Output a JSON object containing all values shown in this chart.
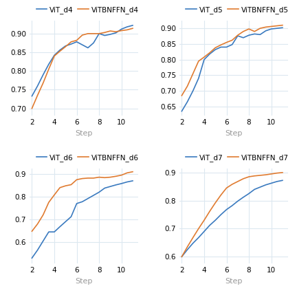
{
  "subplots": [
    {
      "legend": [
        "ViT_d4",
        "ViTBNFFN_d4"
      ],
      "blue_x": [
        2,
        2.5,
        3,
        3.5,
        4,
        4.5,
        5,
        5.5,
        6,
        6.5,
        7,
        7.5,
        8,
        8.5,
        9,
        9.5,
        10,
        10.5,
        11
      ],
      "blue_y": [
        0.733,
        0.76,
        0.79,
        0.818,
        0.842,
        0.856,
        0.867,
        0.872,
        0.878,
        0.87,
        0.862,
        0.875,
        0.9,
        0.895,
        0.898,
        0.902,
        0.912,
        0.918,
        0.922
      ],
      "orange_x": [
        2,
        2.5,
        3,
        3.5,
        4,
        4.5,
        5,
        5.5,
        6,
        6.5,
        7,
        7.5,
        8,
        8.5,
        9,
        9.5,
        10,
        10.5,
        11
      ],
      "orange_y": [
        0.7,
        0.735,
        0.768,
        0.805,
        0.84,
        0.853,
        0.865,
        0.878,
        0.882,
        0.896,
        0.9,
        0.9,
        0.9,
        0.903,
        0.907,
        0.905,
        0.908,
        0.91,
        0.914
      ],
      "yticks": [
        0.7,
        0.75,
        0.8,
        0.85,
        0.9
      ],
      "ylim": [
        0.68,
        0.935
      ]
    },
    {
      "legend": [
        "ViT_d5",
        "ViTBNFFN_d5"
      ],
      "blue_x": [
        2,
        2.5,
        3,
        3.5,
        4,
        4.5,
        5,
        5.5,
        6,
        6.5,
        7,
        7.5,
        8,
        8.5,
        9,
        9.5,
        10,
        10.5,
        11
      ],
      "blue_y": [
        0.635,
        0.665,
        0.7,
        0.74,
        0.8,
        0.818,
        0.832,
        0.84,
        0.84,
        0.848,
        0.876,
        0.87,
        0.878,
        0.882,
        0.88,
        0.892,
        0.898,
        0.9,
        0.902
      ],
      "orange_x": [
        2,
        2.5,
        3,
        3.5,
        4,
        4.5,
        5,
        5.5,
        6,
        6.5,
        7,
        7.5,
        8,
        8.5,
        9,
        9.5,
        10,
        10.5,
        11
      ],
      "orange_y": [
        0.685,
        0.715,
        0.755,
        0.795,
        0.808,
        0.822,
        0.838,
        0.847,
        0.855,
        0.862,
        0.878,
        0.89,
        0.898,
        0.89,
        0.9,
        0.904,
        0.906,
        0.908,
        0.91
      ],
      "yticks": [
        0.65,
        0.7,
        0.75,
        0.8,
        0.85,
        0.9
      ],
      "ylim": [
        0.62,
        0.925
      ]
    },
    {
      "legend": [
        "ViT_d6",
        "ViTBNFFN_d6"
      ],
      "blue_x": [
        2,
        2.5,
        3,
        3.5,
        4,
        4.5,
        5,
        5.5,
        6,
        6.5,
        7,
        7.5,
        8,
        8.5,
        9,
        9.5,
        10,
        10.5,
        11
      ],
      "blue_y": [
        0.53,
        0.565,
        0.605,
        0.645,
        0.645,
        0.668,
        0.69,
        0.712,
        0.77,
        0.778,
        0.792,
        0.806,
        0.82,
        0.838,
        0.845,
        0.852,
        0.858,
        0.865,
        0.87
      ],
      "orange_x": [
        2,
        2.5,
        3,
        3.5,
        4,
        4.5,
        5,
        5.5,
        6,
        6.5,
        7,
        7.5,
        8,
        8.5,
        9,
        9.5,
        10,
        10.5,
        11
      ],
      "orange_y": [
        0.648,
        0.68,
        0.72,
        0.775,
        0.808,
        0.84,
        0.848,
        0.853,
        0.875,
        0.88,
        0.882,
        0.882,
        0.886,
        0.884,
        0.886,
        0.89,
        0.895,
        0.905,
        0.91
      ],
      "yticks": [
        0.6,
        0.7,
        0.8,
        0.9
      ],
      "ylim": [
        0.505,
        0.925
      ]
    },
    {
      "legend": [
        "ViT_d7",
        "ViTBNFFN_d7"
      ],
      "blue_x": [
        2,
        2.5,
        3,
        3.5,
        4,
        4.5,
        5,
        5.5,
        6,
        6.5,
        7,
        7.5,
        8,
        8.5,
        9,
        9.5,
        10,
        10.5,
        11
      ],
      "blue_y": [
        0.6,
        0.625,
        0.648,
        0.668,
        0.69,
        0.712,
        0.73,
        0.75,
        0.768,
        0.782,
        0.798,
        0.812,
        0.825,
        0.84,
        0.848,
        0.856,
        0.862,
        0.868,
        0.872
      ],
      "orange_x": [
        2,
        2.5,
        3,
        3.5,
        4,
        4.5,
        5,
        5.5,
        6,
        6.5,
        7,
        7.5,
        8,
        8.5,
        9,
        9.5,
        10,
        10.5,
        11
      ],
      "orange_y": [
        0.6,
        0.635,
        0.668,
        0.7,
        0.73,
        0.762,
        0.792,
        0.82,
        0.845,
        0.858,
        0.868,
        0.878,
        0.885,
        0.888,
        0.89,
        0.892,
        0.895,
        0.898,
        0.9
      ],
      "yticks": [
        0.6,
        0.7,
        0.8,
        0.9
      ],
      "ylim": [
        0.575,
        0.915
      ]
    }
  ],
  "blue_color": "#3a7abf",
  "orange_color": "#e07b30",
  "xlabel": "Step",
  "xticks": [
    2,
    4,
    6,
    8,
    10
  ],
  "xlim": [
    1.8,
    11.5
  ],
  "grid_color": "#dce8f0",
  "legend_fontsize": 7.5,
  "tick_fontsize": 7.5,
  "label_fontsize": 8
}
